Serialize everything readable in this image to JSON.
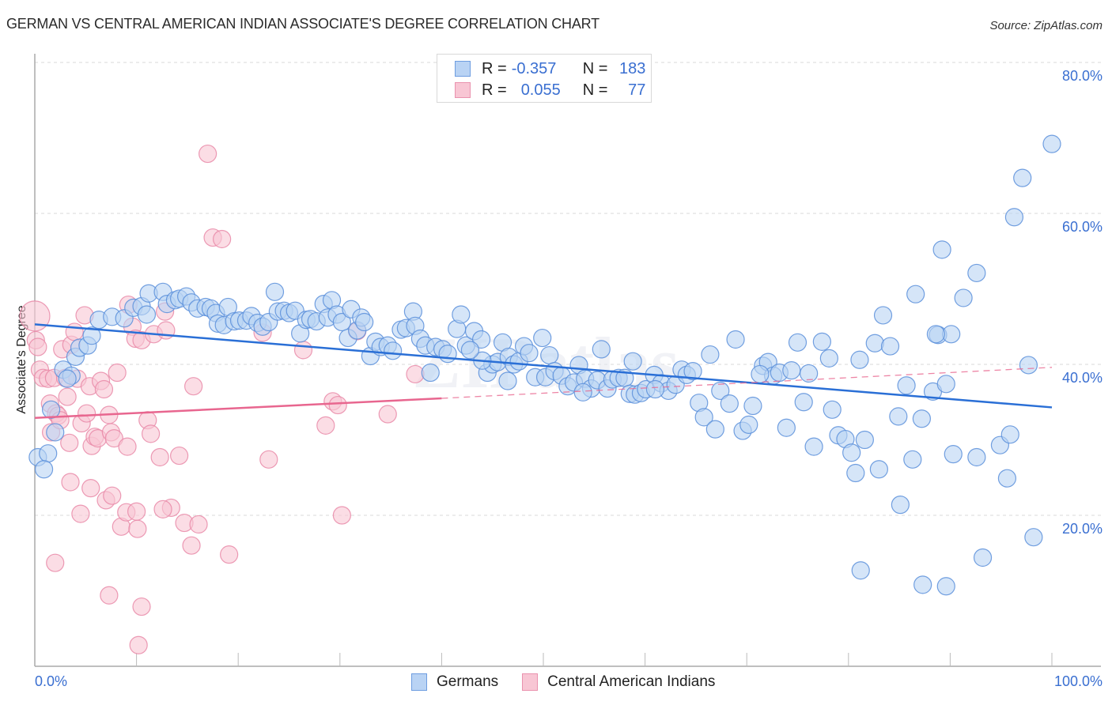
{
  "header": {
    "title": "GERMAN VS CENTRAL AMERICAN INDIAN ASSOCIATE'S DEGREE CORRELATION CHART",
    "source": "Source: ZipAtlas.com"
  },
  "legend": {
    "rows": [
      {
        "r_label": "R =",
        "r_value": "-0.357",
        "n_label": "N =",
        "n_value": "183"
      },
      {
        "r_label": "R =",
        "r_value": "0.055",
        "n_label": "N =",
        "n_value": "77"
      }
    ],
    "bottom": [
      "Germans",
      "Central American Indians"
    ]
  },
  "colors": {
    "germans_fill": "#b9d3f4",
    "germans_stroke": "#5b8fdb",
    "germans_line": "#2a6fd6",
    "cai_fill": "#f8c6d4",
    "cai_stroke": "#e98aa8",
    "cai_line": "#e8668f",
    "tick_text": "#3a6fd1"
  },
  "watermark": "ZIPatlas",
  "chart_data": {
    "type": "scatter",
    "title": "GERMAN VS CENTRAL AMERICAN INDIAN ASSOCIATE'S DEGREE CORRELATION CHART",
    "xlabel": "",
    "ylabel": "Associate's Degree",
    "xlim": [
      0,
      100
    ],
    "ylim": [
      0,
      80
    ],
    "x_tick_labels": [
      "0.0%",
      "100.0%"
    ],
    "y_ticks": [
      20,
      40,
      60,
      80
    ],
    "y_tick_labels": [
      "20.0%",
      "40.0%",
      "60.0%",
      "80.0%"
    ],
    "grid": true,
    "legend_position": "top-center",
    "series": [
      {
        "name": "Germans",
        "R": -0.357,
        "N": 183,
        "trend": {
          "x": [
            0,
            100
          ],
          "y": [
            45.3,
            34.3
          ],
          "style": "solid"
        },
        "points": [
          [
            0.3,
            27.7
          ],
          [
            1.3,
            28.2
          ],
          [
            0.9,
            26.1
          ],
          [
            2.0,
            31.0
          ],
          [
            1.6,
            34.0
          ],
          [
            2.8,
            39.3
          ],
          [
            3.6,
            38.5
          ],
          [
            4.0,
            41.0
          ],
          [
            4.4,
            42.2
          ],
          [
            3.2,
            38.1
          ],
          [
            5.2,
            42.5
          ],
          [
            5.6,
            43.8
          ],
          [
            6.3,
            45.9
          ],
          [
            7.6,
            46.3
          ],
          [
            8.8,
            46.1
          ],
          [
            9.7,
            47.5
          ],
          [
            10.5,
            47.7
          ],
          [
            11.2,
            49.4
          ],
          [
            12.6,
            49.6
          ],
          [
            11.0,
            46.6
          ],
          [
            13.0,
            48.0
          ],
          [
            13.8,
            48.5
          ],
          [
            14.2,
            48.7
          ],
          [
            14.9,
            49.0
          ],
          [
            15.4,
            48.2
          ],
          [
            16.0,
            47.4
          ],
          [
            16.8,
            47.6
          ],
          [
            17.3,
            47.4
          ],
          [
            17.8,
            46.8
          ],
          [
            18.0,
            45.4
          ],
          [
            18.6,
            45.2
          ],
          [
            19.0,
            47.6
          ],
          [
            19.6,
            45.7
          ],
          [
            20.1,
            45.8
          ],
          [
            20.8,
            45.8
          ],
          [
            21.3,
            46.4
          ],
          [
            21.9,
            45.5
          ],
          [
            22.4,
            45.0
          ],
          [
            23.0,
            45.6
          ],
          [
            23.6,
            49.6
          ],
          [
            23.9,
            47.0
          ],
          [
            24.5,
            47.1
          ],
          [
            25.0,
            46.8
          ],
          [
            25.6,
            47.1
          ],
          [
            26.1,
            44.1
          ],
          [
            26.7,
            45.9
          ],
          [
            27.1,
            46.0
          ],
          [
            27.7,
            45.7
          ],
          [
            28.4,
            48.0
          ],
          [
            28.8,
            46.2
          ],
          [
            29.2,
            48.5
          ],
          [
            29.7,
            46.6
          ],
          [
            30.2,
            45.6
          ],
          [
            30.8,
            43.5
          ],
          [
            31.1,
            47.3
          ],
          [
            31.7,
            44.5
          ],
          [
            32.1,
            46.2
          ],
          [
            32.4,
            45.6
          ],
          [
            33.0,
            41.1
          ],
          [
            33.5,
            43.0
          ],
          [
            34.0,
            42.3
          ],
          [
            34.7,
            42.5
          ],
          [
            35.2,
            41.8
          ],
          [
            36.0,
            44.6
          ],
          [
            36.5,
            44.8
          ],
          [
            37.2,
            47.0
          ],
          [
            37.4,
            45.1
          ],
          [
            37.9,
            43.4
          ],
          [
            38.4,
            42.5
          ],
          [
            38.9,
            38.9
          ],
          [
            39.4,
            42.3
          ],
          [
            40.1,
            42.0
          ],
          [
            40.6,
            41.4
          ],
          [
            41.5,
            44.7
          ],
          [
            41.9,
            46.6
          ],
          [
            42.4,
            42.5
          ],
          [
            43.2,
            44.4
          ],
          [
            43.9,
            43.3
          ],
          [
            44.5,
            38.9
          ],
          [
            45.0,
            40.0
          ],
          [
            45.5,
            40.3
          ],
          [
            46.0,
            42.9
          ],
          [
            46.6,
            41.0
          ],
          [
            47.1,
            40.0
          ],
          [
            47.6,
            40.4
          ],
          [
            48.1,
            42.4
          ],
          [
            48.6,
            41.5
          ],
          [
            49.2,
            38.3
          ],
          [
            49.9,
            43.5
          ],
          [
            50.2,
            38.3
          ],
          [
            50.6,
            41.2
          ],
          [
            51.1,
            39.1
          ],
          [
            51.8,
            38.5
          ],
          [
            52.4,
            37.1
          ],
          [
            53.0,
            37.6
          ],
          [
            53.5,
            39.9
          ],
          [
            54.1,
            38.1
          ],
          [
            54.7,
            36.8
          ],
          [
            55.3,
            37.9
          ],
          [
            55.7,
            42.0
          ],
          [
            56.3,
            36.8
          ],
          [
            56.8,
            38.0
          ],
          [
            57.4,
            38.2
          ],
          [
            58.0,
            38.2
          ],
          [
            58.5,
            36.1
          ],
          [
            59.0,
            36.0
          ],
          [
            59.6,
            36.2
          ],
          [
            60.1,
            36.7
          ],
          [
            60.9,
            38.6
          ],
          [
            61.6,
            37.5
          ],
          [
            62.3,
            36.5
          ],
          [
            63.0,
            37.3
          ],
          [
            63.6,
            39.3
          ],
          [
            64.1,
            38.6
          ],
          [
            64.7,
            39.1
          ],
          [
            65.3,
            34.9
          ],
          [
            65.8,
            33.0
          ],
          [
            66.4,
            41.3
          ],
          [
            66.9,
            31.4
          ],
          [
            67.4,
            36.5
          ],
          [
            68.3,
            34.8
          ],
          [
            68.9,
            43.3
          ],
          [
            69.6,
            31.2
          ],
          [
            70.2,
            32.0
          ],
          [
            70.6,
            34.5
          ],
          [
            71.6,
            39.8
          ],
          [
            72.1,
            40.3
          ],
          [
            72.6,
            38.5
          ],
          [
            73.2,
            38.9
          ],
          [
            73.9,
            31.6
          ],
          [
            74.4,
            39.2
          ],
          [
            75.0,
            42.9
          ],
          [
            75.6,
            35.0
          ],
          [
            76.1,
            38.8
          ],
          [
            76.6,
            29.1
          ],
          [
            77.4,
            43.0
          ],
          [
            78.1,
            40.8
          ],
          [
            78.4,
            34.0
          ],
          [
            79.0,
            30.6
          ],
          [
            79.7,
            30.1
          ],
          [
            80.3,
            28.3
          ],
          [
            80.7,
            25.6
          ],
          [
            81.1,
            40.6
          ],
          [
            81.6,
            30.0
          ],
          [
            82.6,
            42.8
          ],
          [
            83.0,
            26.1
          ],
          [
            83.4,
            46.5
          ],
          [
            84.1,
            42.4
          ],
          [
            84.9,
            33.1
          ],
          [
            85.1,
            21.4
          ],
          [
            85.7,
            37.2
          ],
          [
            86.3,
            27.4
          ],
          [
            86.6,
            49.3
          ],
          [
            87.2,
            32.8
          ],
          [
            88.3,
            36.4
          ],
          [
            88.8,
            43.9
          ],
          [
            89.6,
            37.4
          ],
          [
            90.1,
            44.0
          ],
          [
            81.2,
            12.7
          ],
          [
            87.3,
            10.8
          ],
          [
            89.6,
            10.6
          ],
          [
            88.6,
            44.0
          ],
          [
            89.2,
            55.2
          ],
          [
            90.3,
            28.1
          ],
          [
            91.3,
            48.8
          ],
          [
            92.6,
            27.7
          ],
          [
            92.6,
            52.1
          ],
          [
            93.2,
            14.4
          ],
          [
            94.9,
            29.3
          ],
          [
            95.6,
            24.9
          ],
          [
            95.9,
            30.7
          ],
          [
            96.3,
            59.5
          ],
          [
            97.7,
            39.9
          ],
          [
            98.2,
            17.1
          ],
          [
            97.1,
            64.7
          ],
          [
            100.0,
            69.2
          ],
          [
            71.3,
            38.7
          ],
          [
            61.0,
            36.7
          ],
          [
            58.8,
            40.4
          ],
          [
            53.9,
            36.3
          ],
          [
            46.5,
            37.8
          ],
          [
            44.0,
            40.5
          ],
          [
            42.8,
            41.9
          ]
        ]
      },
      {
        "name": "Central American Indians",
        "R": 0.055,
        "N": 77,
        "trend": {
          "x": [
            0,
            40,
            100
          ],
          "y": [
            32.9,
            35.5,
            39.6
          ],
          "style": "solid-then-dashed",
          "solid_until": 40
        },
        "points": [
          [
            0.0,
            46.4
          ],
          [
            0.1,
            43.2
          ],
          [
            0.3,
            42.3
          ],
          [
            0.5,
            39.3
          ],
          [
            0.8,
            38.2
          ],
          [
            1.3,
            38.1
          ],
          [
            1.5,
            34.8
          ],
          [
            1.6,
            31.0
          ],
          [
            1.9,
            38.2
          ],
          [
            2.1,
            33.5
          ],
          [
            2.3,
            33.2
          ],
          [
            2.5,
            32.6
          ],
          [
            2.7,
            42.0
          ],
          [
            3.0,
            38.2
          ],
          [
            3.2,
            35.7
          ],
          [
            3.4,
            29.6
          ],
          [
            3.6,
            42.6
          ],
          [
            3.9,
            44.3
          ],
          [
            4.2,
            38.1
          ],
          [
            4.6,
            32.2
          ],
          [
            4.9,
            46.5
          ],
          [
            5.1,
            33.5
          ],
          [
            5.4,
            37.1
          ],
          [
            5.6,
            29.2
          ],
          [
            5.9,
            30.4
          ],
          [
            6.2,
            30.2
          ],
          [
            6.5,
            37.8
          ],
          [
            6.8,
            36.7
          ],
          [
            7.0,
            22.0
          ],
          [
            7.3,
            33.3
          ],
          [
            7.5,
            31.0
          ],
          [
            7.8,
            30.2
          ],
          [
            8.1,
            38.9
          ],
          [
            8.5,
            18.5
          ],
          [
            9.2,
            47.9
          ],
          [
            9.6,
            45.0
          ],
          [
            9.9,
            43.4
          ],
          [
            10.1,
            18.2
          ],
          [
            10.5,
            43.2
          ],
          [
            11.1,
            32.6
          ],
          [
            11.4,
            30.8
          ],
          [
            11.7,
            44.0
          ],
          [
            12.3,
            27.7
          ],
          [
            12.8,
            47.0
          ],
          [
            12.9,
            44.5
          ],
          [
            13.4,
            21.0
          ],
          [
            14.2,
            27.9
          ],
          [
            14.7,
            19.0
          ],
          [
            15.4,
            16.0
          ],
          [
            15.6,
            37.1
          ],
          [
            17.0,
            67.9
          ],
          [
            17.5,
            56.8
          ],
          [
            18.4,
            56.6
          ],
          [
            19.1,
            14.8
          ],
          [
            22.4,
            44.2
          ],
          [
            23.0,
            27.4
          ],
          [
            26.4,
            41.9
          ],
          [
            28.6,
            31.9
          ],
          [
            29.3,
            35.1
          ],
          [
            29.8,
            34.6
          ],
          [
            30.2,
            20.0
          ],
          [
            31.7,
            44.4
          ],
          [
            34.7,
            33.4
          ],
          [
            37.4,
            38.7
          ],
          [
            2.0,
            13.7
          ],
          [
            4.5,
            20.2
          ],
          [
            7.6,
            22.6
          ],
          [
            9.0,
            20.4
          ],
          [
            10.0,
            20.5
          ],
          [
            12.6,
            20.8
          ],
          [
            7.3,
            9.4
          ],
          [
            10.5,
            7.9
          ],
          [
            10.2,
            2.8
          ],
          [
            5.5,
            23.6
          ],
          [
            3.5,
            24.4
          ],
          [
            9.1,
            29.1
          ],
          [
            16.1,
            18.8
          ]
        ]
      }
    ]
  }
}
